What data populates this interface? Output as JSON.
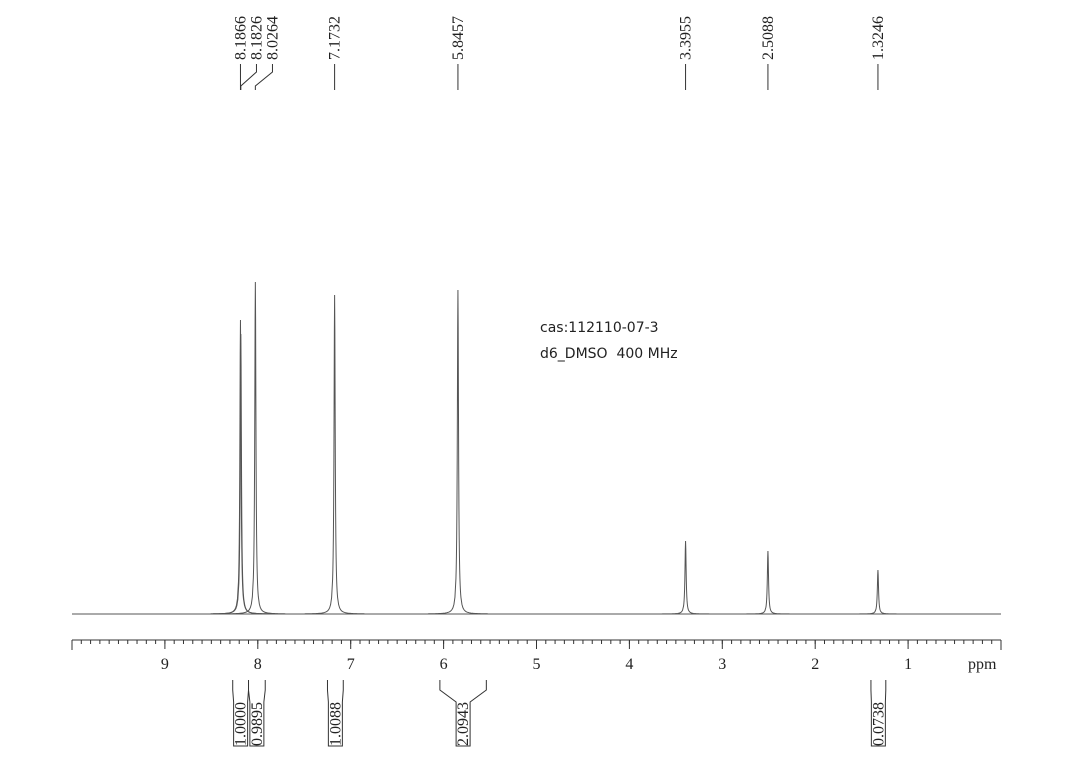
{
  "chart_data": {
    "type": "nmr",
    "x_label": "ppm",
    "xlim": [
      10,
      0
    ],
    "xticks": [
      1,
      2,
      3,
      4,
      5,
      6,
      7,
      8,
      9
    ],
    "minor_tick_step": 0.1,
    "ylim": [
      0,
      340
    ],
    "color": "#555555",
    "peaks": {
      "shifts": [
        8.1866,
        8.1826,
        8.0264,
        7.1732,
        5.8457,
        3.3955,
        2.5088,
        1.3246
      ],
      "intensities": [
        294,
        280,
        332,
        319,
        324,
        73,
        63,
        44
      ]
    },
    "integrals": {
      "values": [
        {
          "value": 1,
          "label": "1.0000"
        },
        {
          "value": 0.9895,
          "label": "0.9895"
        },
        {
          "value": 1.0088,
          "label": "1.0088"
        },
        {
          "value": 2.0943,
          "label": "2.0943"
        },
        {
          "value": 0.0738,
          "label": "0.0738"
        }
      ],
      "ranges": [
        [
          8.27,
          8.1
        ],
        [
          8.1,
          7.92
        ],
        [
          7.25,
          7.08
        ],
        [
          6.04,
          5.54
        ],
        [
          1.4,
          1.24
        ]
      ]
    },
    "annotations": [
      "cas:112110-07-3",
      "d6_DMSO  400 MHz"
    ]
  }
}
